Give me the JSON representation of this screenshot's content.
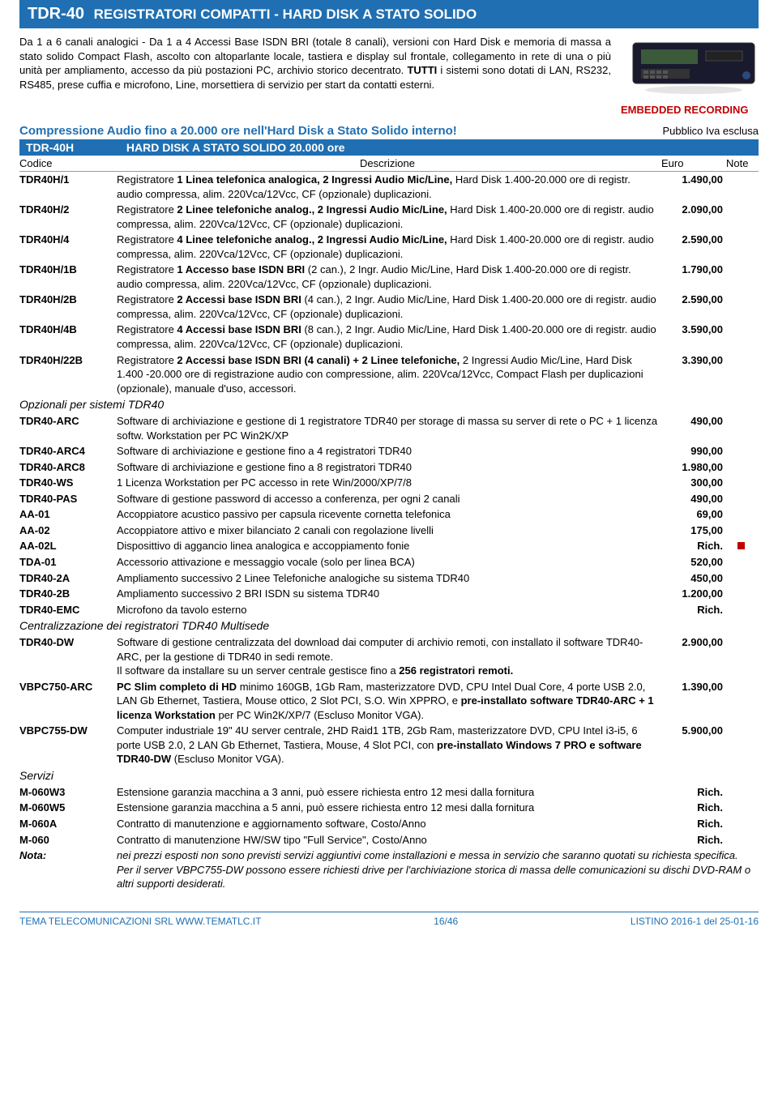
{
  "header": {
    "code": "TDR-40",
    "title": "REGISTRATORI COMPATTI - HARD DISK A STATO SOLIDO"
  },
  "intro": {
    "p1": "Da 1 a 6 canali analogici - Da 1 a 4 Accessi Base ISDN BRI (totale 8 canali), versioni con Hard Disk e memoria di massa a stato solido Compact Flash, ascolto con altoparlante locale, tastiera e display sul frontale, collegamento in rete di una o più unità per ampliamento, accesso da più postazioni PC, archivio storico decentrato. ",
    "p2_bold": "TUTTI",
    "p3": " i sistemi sono dotati di LAN, RS232, RS485, prese cuffia e microfono, Line, morsettiera di servizio per start da contatti esterni.",
    "embedded": "EMBEDDED RECORDING"
  },
  "compr_line": "Compressione Audio fino a 20.000 ore nell'Hard Disk a Stato Solido interno!",
  "pubblico": "Pubblico Iva esclusa",
  "section1": {
    "code": "TDR-40H",
    "title": "HARD DISK A STATO SOLIDO 20.000 ore"
  },
  "tableHead": {
    "c1": "Codice",
    "c2": "Descrizione",
    "c3": "Euro",
    "c4": "Note"
  },
  "rows1": [
    {
      "code": "TDR40H/1",
      "desc": "Registratore <b>1 Linea telefonica analogica, 2 Ingressi Audio Mic/Line,</b> Hard Disk 1.400-20.000 ore di registr. audio compressa, alim. 220Vca/12Vcc, CF (opzionale) duplicazioni.",
      "price": "1.490,00",
      "note": ""
    },
    {
      "code": "TDR40H/2",
      "desc": "Registratore <b>2 Linee telefoniche analog., 2 Ingressi Audio Mic/Line,</b> Hard Disk 1.400-20.000 ore di registr. audio compressa, alim. 220Vca/12Vcc, CF (opzionale) duplicazioni.",
      "price": "2.090,00",
      "note": ""
    },
    {
      "code": "TDR40H/4",
      "desc": "Registratore <b>4 Linee telefoniche analog., 2 Ingressi Audio Mic/Line,</b> Hard Disk 1.400-20.000 ore di registr. audio compressa, alim. 220Vca/12Vcc, CF (opzionale) duplicazioni.",
      "price": "2.590,00",
      "note": ""
    },
    {
      "code": "TDR40H/1B",
      "desc": "Registratore <b>1 Accesso base ISDN BRI</b> (2 can.), 2 Ingr. Audio Mic/Line, Hard Disk 1.400-20.000 ore di registr. audio compressa, alim. 220Vca/12Vcc, CF (opzionale) duplicazioni.",
      "price": "1.790,00",
      "note": ""
    },
    {
      "code": "TDR40H/2B",
      "desc": "Registratore <b>2 Accessi base ISDN BRI</b> (4 can.), 2 Ingr. Audio Mic/Line, Hard Disk 1.400-20.000 ore di registr. audio compressa, alim. 220Vca/12Vcc, CF (opzionale) duplicazioni.",
      "price": "2.590,00",
      "note": ""
    },
    {
      "code": "TDR40H/4B",
      "desc": "Registratore <b>4 Accessi base ISDN BRI</b> (8 can.), 2 Ingr. Audio Mic/Line, Hard Disk 1.400-20.000 ore di registr. audio compressa, alim. 220Vca/12Vcc, CF (opzionale) duplicazioni.",
      "price": "3.590,00",
      "note": ""
    },
    {
      "code": "TDR40H/22B",
      "desc": "Registratore <b>2 Accessi base ISDN BRI (4 canali) + 2 Linee telefoniche,</b> 2 Ingressi Audio Mic/Line, Hard Disk 1.400 -20.000 ore di registrazione audio con compressione, alim. 220Vca/12Vcc, Compact Flash per duplicazioni (opzionale), manuale d'uso, accessori.",
      "price": "3.390,00",
      "note": ""
    }
  ],
  "section2": "Opzionali per sistemi TDR40",
  "rows2": [
    {
      "code": "TDR40-ARC",
      "desc": "Software di archiviazione e gestione di 1 registratore TDR40 per storage di massa su server di rete o PC + 1 licenza softw. Workstation per PC Win2K/XP",
      "price": "490,00",
      "note": ""
    },
    {
      "code": "TDR40-ARC4",
      "desc": "Software di archiviazione e gestione fino a 4 registratori TDR40",
      "price": "990,00",
      "note": ""
    },
    {
      "code": "TDR40-ARC8",
      "desc": "Software di archiviazione e gestione fino a 8 registratori TDR40",
      "price": "1.980,00",
      "note": ""
    },
    {
      "code": "TDR40-WS",
      "desc": "1 Licenza Workstation per PC accesso in rete Win/2000/XP/7/8",
      "price": "300,00",
      "note": ""
    },
    {
      "code": "TDR40-PAS",
      "desc": "Software di gestione password di accesso a conferenza, per ogni 2 canali",
      "price": "490,00",
      "note": ""
    },
    {
      "code": "AA-01",
      "desc": "Accoppiatore acustico passivo per capsula ricevente cornetta telefonica",
      "price": "69,00",
      "note": ""
    },
    {
      "code": "AA-02",
      "desc": "Accoppiatore attivo e mixer bilanciato 2 canali con regolazione livelli",
      "price": "175,00",
      "note": ""
    },
    {
      "code": "AA-02L",
      "desc": "Disposittivo di aggancio linea analogica e accoppiamento fonie",
      "price": "Rich.",
      "note": "■"
    },
    {
      "code": "TDA-01",
      "desc": "Accessorio attivazione e messaggio vocale (solo per linea BCA)",
      "price": "520,00",
      "note": ""
    },
    {
      "code": "TDR40-2A",
      "desc": "Ampliamento successivo 2 Linee Telefoniche analogiche su sistema TDR40",
      "price": "450,00",
      "note": ""
    },
    {
      "code": "TDR40-2B",
      "desc": "Ampliamento successivo 2 BRI ISDN su sistema TDR40",
      "price": "1.200,00",
      "note": ""
    },
    {
      "code": "TDR40-EMC",
      "desc": "Microfono da tavolo esterno",
      "price": "Rich.",
      "note": ""
    }
  ],
  "section3": "Centralizzazione dei registratori TDR40 Multisede",
  "rows3": [
    {
      "code": "TDR40-DW",
      "desc": "Software di gestione centralizzata del download dai computer di archivio remoti, con installato il software TDR40-ARC, per la gestione di TDR40 in sedi remote.<br>Il software da installare su un server centrale gestisce fino a <b>256 registratori remoti.</b>",
      "price": "2.900,00",
      "note": ""
    },
    {
      "code": "VBPC750-ARC",
      "desc": "<b>PC Slim completo di HD</b> minimo 160GB, 1Gb Ram, masterizzatore DVD, CPU Intel Dual Core, 4 porte USB 2.0, LAN Gb Ethernet, Tastiera, Mouse ottico, 2 Slot PCI, S.O. Win XPPRO, e <b>pre-installato software TDR40-ARC + 1 licenza Workstation</b> per PC Win2K/XP/7 (Escluso Monitor VGA).",
      "price": "1.390,00",
      "note": ""
    },
    {
      "code": "VBPC755-DW",
      "desc": "Computer industriale 19\" 4U server centrale, 2HD Raid1 1TB, 2Gb Ram, masterizzatore DVD, CPU Intel i3-i5, 6 porte USB 2.0, 2 LAN Gb Ethernet, Tastiera, Mouse, 4 Slot PCI, con <b>pre-installato Windows 7 PRO e software TDR40-DW</b> (Escluso Monitor VGA).",
      "price": "5.900,00",
      "note": ""
    }
  ],
  "section4": "Servizi",
  "rows4": [
    {
      "code": "M-060W3",
      "desc": "Estensione garanzia macchina a 3 anni, può essere richiesta entro 12 mesi dalla fornitura",
      "price": "Rich.",
      "note": ""
    },
    {
      "code": "M-060W5",
      "desc": "Estensione garanzia macchina a 5 anni, può essere richiesta entro 12 mesi dalla fornitura",
      "price": "Rich.",
      "note": ""
    },
    {
      "code": "M-060A",
      "desc": "Contratto di manutenzione e aggiornamento software, Costo/Anno",
      "price": "Rich.",
      "note": ""
    },
    {
      "code": "M-060",
      "desc": "Contratto di manutenzione HW/SW tipo \"Full Service\", Costo/Anno",
      "price": "Rich.",
      "note": ""
    }
  ],
  "notaLabel": "Nota:",
  "nota": "nei prezzi esposti non sono previsti servizi aggiuntivi come installazioni e messa in servizio che saranno quotati su richiesta specifica. Per il server VBPC755-DW possono essere richiesti drive per l'archiviazione storica di massa delle comunicazioni su dischi DVD-RAM o altri supporti desiderati.",
  "footer": {
    "left": "TEMA TELECOMUNICAZIONI SRL    WWW.TEMATLC.IT",
    "center": "16/46",
    "right": "LISTINO 2016-1 del 25-01-16"
  }
}
